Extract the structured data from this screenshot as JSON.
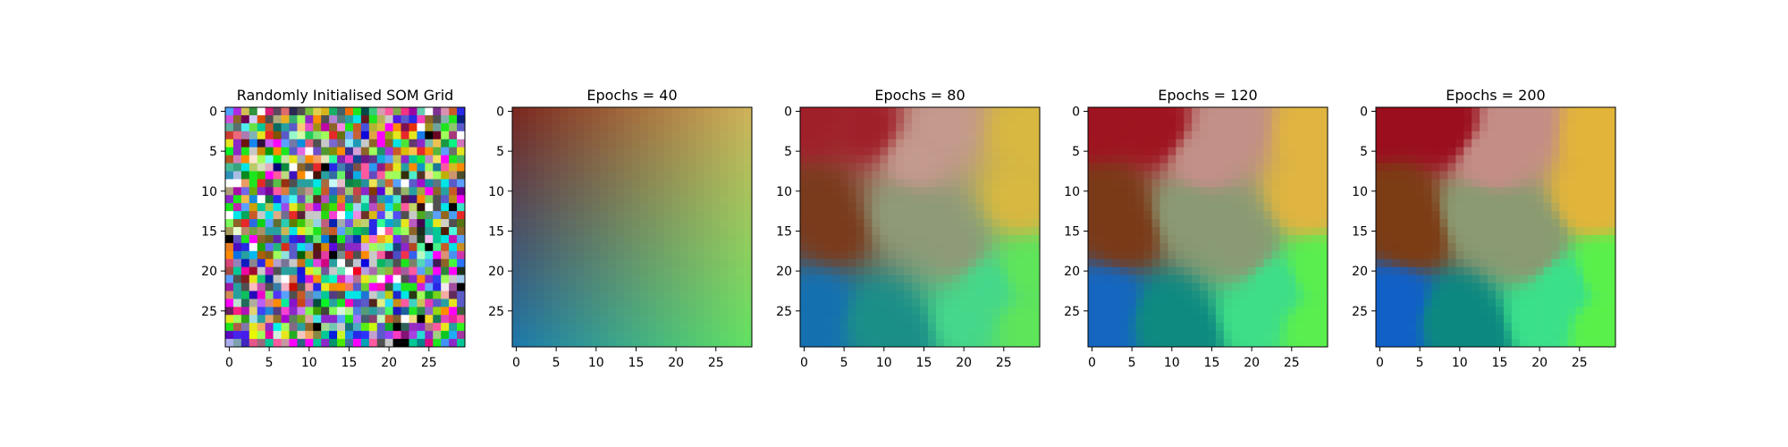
{
  "figure": {
    "background": "#ffffff"
  },
  "chart_data": [
    {
      "type": "heatmap",
      "title": "Randomly Initialised SOM Grid",
      "grid_size": 30,
      "pattern": "random",
      "x_ticks": [
        0,
        5,
        10,
        15,
        20,
        25
      ],
      "y_ticks": [
        0,
        5,
        10,
        15,
        20,
        25
      ],
      "xlim": [
        -0.5,
        29.5
      ],
      "ylim": [
        29.5,
        -0.5
      ]
    },
    {
      "type": "heatmap",
      "title": "Epochs = 40",
      "grid_size": 30,
      "pattern": "smooth",
      "corner_colors": {
        "top_left": "#7a2a22",
        "top_right": "#cdb25a",
        "bottom_left": "#1f78a8",
        "bottom_right": "#62e062"
      },
      "x_ticks": [
        0,
        5,
        10,
        15,
        20,
        25
      ],
      "y_ticks": [
        0,
        5,
        10,
        15,
        20,
        25
      ],
      "xlim": [
        -0.5,
        29.5
      ],
      "ylim": [
        29.5,
        -0.5
      ]
    },
    {
      "type": "heatmap",
      "title": "Epochs = 80",
      "grid_size": 30,
      "pattern": "clustered",
      "cluster_colors": {
        "red": "#a0202a",
        "brown": "#7a3a1c",
        "blue": "#1570b0",
        "teal": "#1a8f88",
        "pink": "#c49a8e",
        "yellow": "#d8b840",
        "green": "#5ee55a",
        "mint": "#45d88a",
        "center": "#8e9a78"
      },
      "x_ticks": [
        0,
        5,
        10,
        15,
        20,
        25
      ],
      "y_ticks": [
        0,
        5,
        10,
        15,
        20,
        25
      ],
      "xlim": [
        -0.5,
        29.5
      ],
      "ylim": [
        29.5,
        -0.5
      ]
    },
    {
      "type": "heatmap",
      "title": "Epochs = 120",
      "grid_size": 30,
      "pattern": "clustered",
      "cluster_colors": {
        "red": "#9e1420",
        "brown": "#7a3a18",
        "blue": "#1466c0",
        "teal": "#0e8a80",
        "pink": "#c29088",
        "yellow": "#e0b440",
        "green": "#5aee4e",
        "mint": "#3ede88",
        "center": "#8a9a74"
      },
      "x_ticks": [
        0,
        5,
        10,
        15,
        20,
        25
      ],
      "y_ticks": [
        0,
        5,
        10,
        15,
        20,
        25
      ],
      "xlim": [
        -0.5,
        29.5
      ],
      "ylim": [
        29.5,
        -0.5
      ]
    },
    {
      "type": "heatmap",
      "title": "Epochs = 200",
      "grid_size": 30,
      "pattern": "clustered",
      "cluster_colors": {
        "red": "#9a0e1e",
        "brown": "#7c3c14",
        "blue": "#1060c8",
        "teal": "#0c8880",
        "pink": "#c48e86",
        "yellow": "#e2b43a",
        "green": "#5af04a",
        "mint": "#3ae08a",
        "center": "#8a9a72"
      },
      "x_ticks": [
        0,
        5,
        10,
        15,
        20,
        25
      ],
      "y_ticks": [
        0,
        5,
        10,
        15,
        20,
        25
      ],
      "xlim": [
        -0.5,
        29.5
      ],
      "ylim": [
        29.5,
        -0.5
      ]
    }
  ]
}
